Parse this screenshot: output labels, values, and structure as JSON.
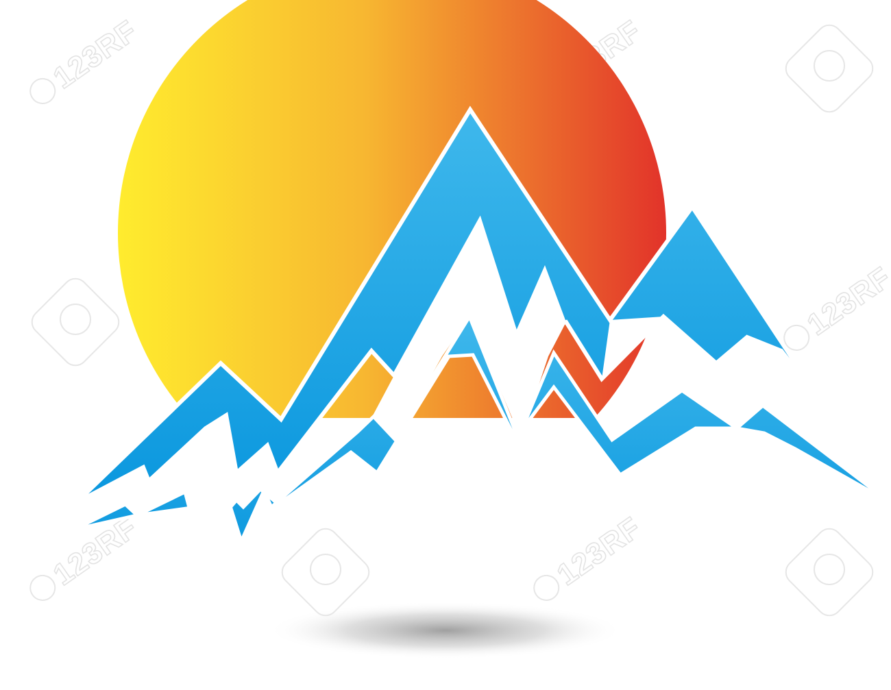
{
  "logo": {
    "sun": {
      "gradient_start": "#FFEC2E",
      "gradient_mid": "#F7B731",
      "gradient_end": "#E2332A"
    },
    "mountains": {
      "fill_top": "#3FB8EC",
      "fill_bottom": "#0A97DE",
      "outline": "#ffffff"
    },
    "shadow_color": "#8f8f8f"
  },
  "watermark": {
    "text": "123RF",
    "color": "#e3e3e3"
  }
}
